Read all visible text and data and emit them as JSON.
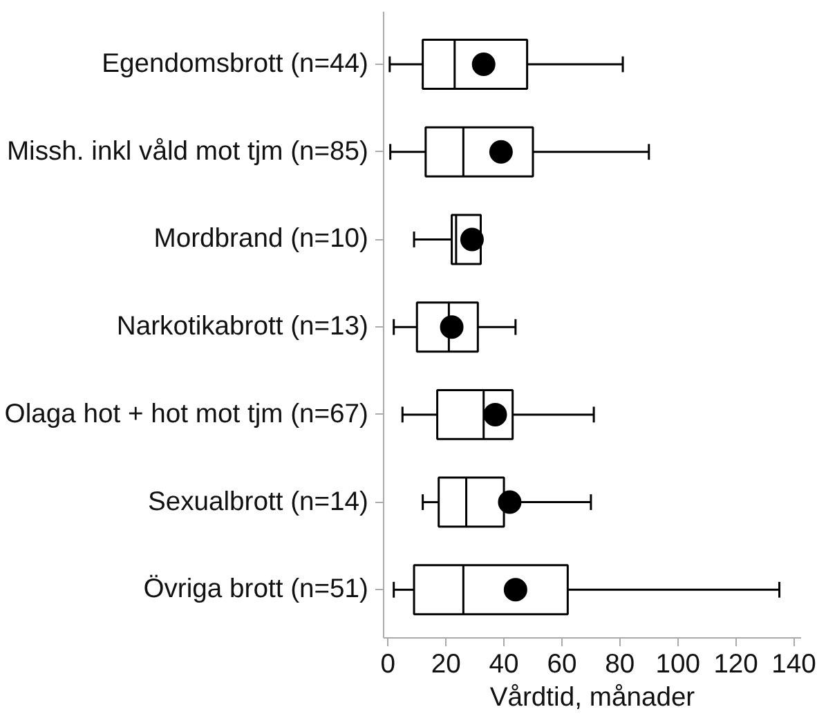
{
  "chart_data": {
    "type": "box",
    "orientation": "horizontal",
    "xlabel": "Vårdtid, månader",
    "categories": [
      "Egendomsbrott (n=44)",
      "Missh. inkl våld mot tjm (n=85)",
      "Mordbrand (n=10)",
      "Narkotikabrott (n=13)",
      "Olaga hot + hot mot tjm (n=67)",
      "Sexualbrott (n=14)",
      "Övriga brott (n=51)"
    ],
    "boxes": [
      {
        "low": 0.6,
        "q1": 12,
        "median": 23,
        "q3": 48,
        "high": 81,
        "mean": 33
      },
      {
        "low": 0.8,
        "q1": 13,
        "median": 26,
        "q3": 50,
        "high": 90,
        "mean": 39
      },
      {
        "low": 9,
        "q1": 22,
        "median": 23.5,
        "q3": 32,
        "high": 32,
        "mean": 29
      },
      {
        "low": 2,
        "q1": 10,
        "median": 21,
        "q3": 31,
        "high": 44,
        "mean": 22
      },
      {
        "low": 5,
        "q1": 17,
        "median": 33,
        "q3": 43,
        "high": 71,
        "mean": 37
      },
      {
        "low": 12,
        "q1": 17.5,
        "median": 27,
        "q3": 40,
        "high": 70,
        "mean": 42
      },
      {
        "low": 2,
        "q1": 9,
        "median": 26,
        "q3": 62,
        "high": 135,
        "mean": 44
      }
    ],
    "xlim": [
      -1.5,
      142.5
    ],
    "xticks": [
      0,
      20,
      40,
      60,
      80,
      100,
      120,
      140
    ],
    "grid": false
  }
}
